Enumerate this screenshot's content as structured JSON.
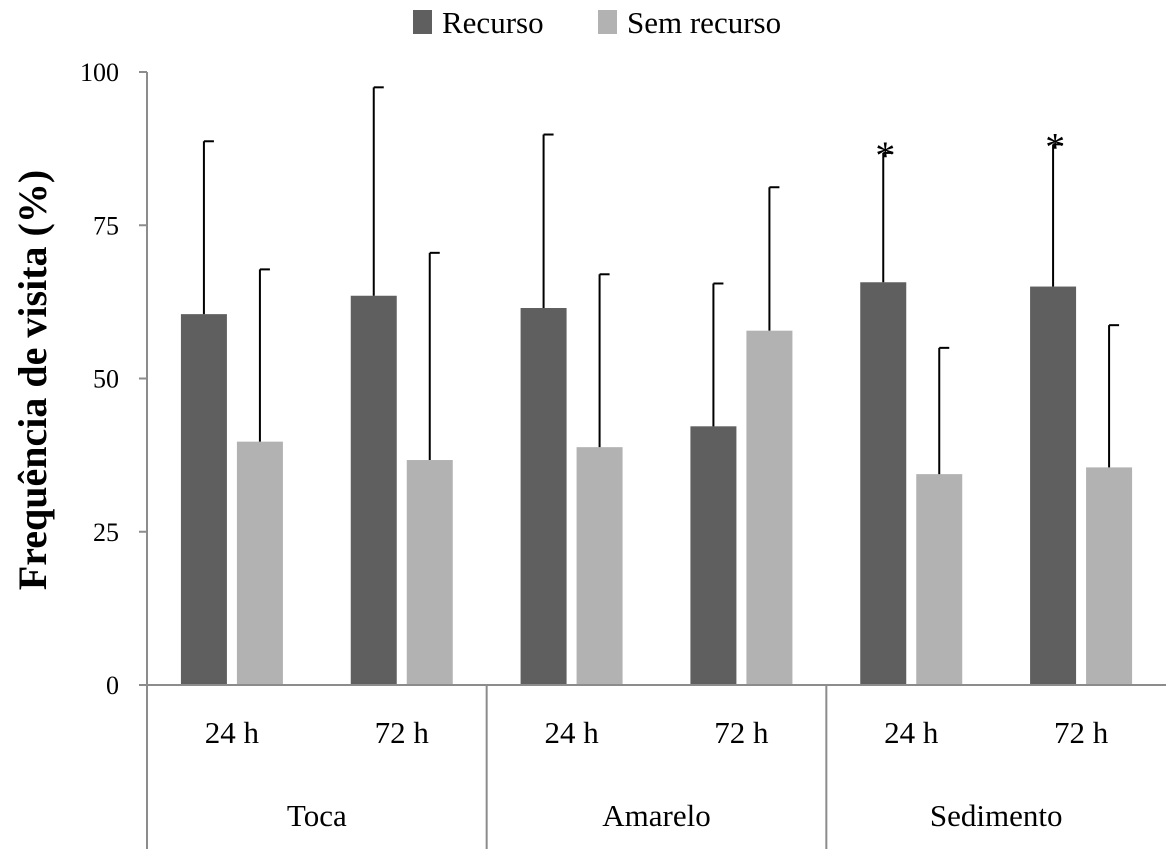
{
  "chart_data": {
    "type": "bar",
    "title": "",
    "ylabel": "Frequência  de  visita  (%)",
    "xlabel": "",
    "ylim": [
      0,
      100
    ],
    "yticks": [
      "0",
      "25",
      "50",
      "75",
      "100"
    ],
    "ytick_values": [
      0,
      25,
      50,
      75,
      100
    ],
    "categories": [
      "24 h",
      "72 h",
      "24 h",
      "72 h",
      "24 h",
      "72 h"
    ],
    "groups": [
      "Toca",
      "Amarelo",
      "Sedimento"
    ],
    "legend_position": "top-center",
    "grid": false,
    "series": [
      {
        "name": "Recurso",
        "color": "#5f5f5f",
        "values": [
          60.5,
          63.5,
          61.5,
          42.2,
          65.7,
          65.0
        ],
        "error_upper": [
          88.7,
          97.5,
          89.8,
          65.5,
          86.8,
          88.2
        ]
      },
      {
        "name": "Sem recurso",
        "color": "#b2b2b2",
        "values": [
          39.7,
          36.7,
          38.8,
          57.8,
          34.4,
          35.5
        ],
        "error_upper": [
          67.8,
          70.5,
          67.0,
          81.2,
          55.0,
          58.7
        ]
      }
    ],
    "annotations": [
      {
        "text": "*",
        "category_index": 4,
        "series_index": 0
      },
      {
        "text": "*",
        "category_index": 5,
        "series_index": 0
      }
    ]
  }
}
